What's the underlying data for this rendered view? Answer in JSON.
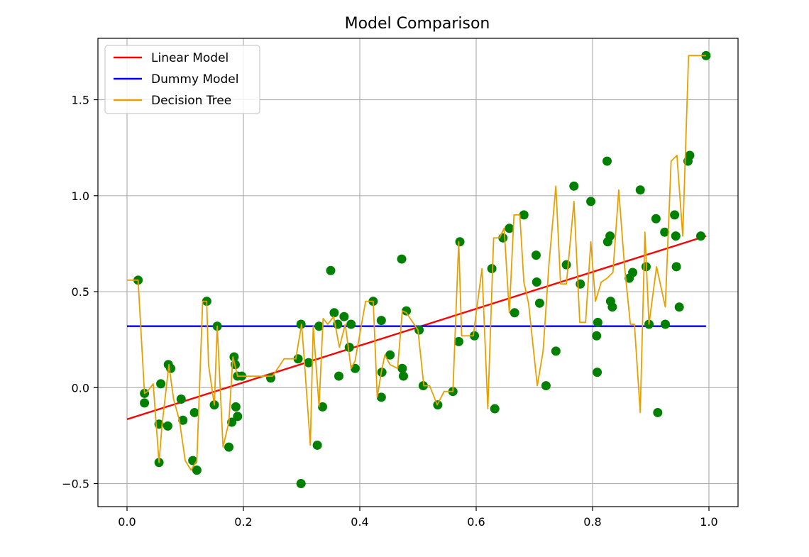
{
  "chart_data": {
    "type": "scatter",
    "title": "Model Comparison",
    "xlabel": "",
    "ylabel": "",
    "xlim": [
      -0.05,
      1.05
    ],
    "ylim": [
      -0.62,
      1.82
    ],
    "xticks": [
      0.0,
      0.2,
      0.4,
      0.6,
      0.8,
      1.0
    ],
    "xtick_labels": [
      "0.0",
      "0.2",
      "0.4",
      "0.6",
      "0.8",
      "1.0"
    ],
    "yticks": [
      -0.5,
      0.0,
      0.5,
      1.0,
      1.5
    ],
    "ytick_labels": [
      "−0.5",
      "0.0",
      "0.5",
      "1.0",
      "1.5"
    ],
    "grid": true,
    "legend_position": "top-left",
    "legend": [
      {
        "label": "Linear Model",
        "color": "#ff0000"
      },
      {
        "label": "Dummy Model",
        "color": "#0000ff"
      },
      {
        "label": "Decision Tree",
        "color": "#e6a000"
      }
    ],
    "points": {
      "color": "#008000",
      "x": [
        0.019,
        0.03,
        0.03,
        0.055,
        0.055,
        0.058,
        0.07,
        0.071,
        0.075,
        0.093,
        0.096,
        0.113,
        0.116,
        0.12,
        0.137,
        0.15,
        0.155,
        0.175,
        0.18,
        0.184,
        0.186,
        0.187,
        0.19,
        0.19,
        0.197,
        0.247,
        0.294,
        0.299,
        0.299,
        0.312,
        0.327,
        0.33,
        0.336,
        0.35,
        0.356,
        0.362,
        0.364,
        0.373,
        0.382,
        0.385,
        0.392,
        0.423,
        0.437,
        0.437,
        0.438,
        0.452,
        0.472,
        0.473,
        0.475,
        0.48,
        0.502,
        0.509,
        0.534,
        0.56,
        0.57,
        0.572,
        0.597,
        0.627,
        0.632,
        0.646,
        0.657,
        0.666,
        0.682,
        0.703,
        0.704,
        0.709,
        0.72,
        0.737,
        0.755,
        0.768,
        0.779,
        0.797,
        0.807,
        0.808,
        0.809,
        0.825,
        0.826,
        0.83,
        0.831,
        0.834,
        0.863,
        0.869,
        0.882,
        0.892,
        0.897,
        0.909,
        0.912,
        0.924,
        0.925,
        0.941,
        0.943,
        0.944,
        0.949,
        0.964,
        0.967,
        0.986,
        0.995
      ],
      "y": [
        0.56,
        -0.03,
        -0.08,
        -0.19,
        -0.39,
        0.02,
        -0.2,
        0.12,
        0.1,
        -0.06,
        -0.17,
        -0.38,
        -0.13,
        -0.43,
        0.45,
        -0.09,
        0.32,
        -0.31,
        -0.18,
        0.16,
        0.12,
        -0.1,
        -0.15,
        0.06,
        0.06,
        0.05,
        0.15,
        0.33,
        -0.5,
        0.13,
        -0.3,
        0.32,
        -0.1,
        0.61,
        0.39,
        0.33,
        0.06,
        0.37,
        0.21,
        0.33,
        0.1,
        0.45,
        0.35,
        -0.05,
        0.08,
        0.17,
        0.67,
        0.1,
        0.06,
        0.4,
        0.3,
        0.01,
        -0.09,
        -0.02,
        0.24,
        0.76,
        0.27,
        0.62,
        -0.11,
        0.78,
        0.83,
        0.39,
        0.9,
        0.69,
        0.55,
        0.44,
        0.01,
        0.19,
        0.64,
        1.05,
        0.54,
        0.97,
        0.27,
        0.08,
        0.34,
        1.18,
        0.76,
        0.79,
        0.45,
        0.42,
        0.57,
        0.6,
        1.03,
        0.63,
        0.33,
        0.88,
        -0.13,
        0.81,
        0.33,
        0.9,
        0.79,
        0.63,
        0.42,
        1.18,
        1.21,
        0.79,
        1.73
      ]
    },
    "series": [
      {
        "name": "Linear Model",
        "color": "#ff0000",
        "x": [
          0.0,
          0.995
        ],
        "y": [
          -0.165,
          0.79
        ]
      },
      {
        "name": "Dummy Model",
        "color": "#0000ff",
        "x": [
          0.0,
          0.995
        ],
        "y": [
          0.32,
          0.32
        ]
      },
      {
        "name": "Decision Tree",
        "color": "#e6a000",
        "x": [
          0.0,
          0.019,
          0.03,
          0.035,
          0.045,
          0.055,
          0.06,
          0.072,
          0.08,
          0.09,
          0.1,
          0.11,
          0.12,
          0.13,
          0.137,
          0.14,
          0.15,
          0.155,
          0.165,
          0.175,
          0.182,
          0.19,
          0.197,
          0.21,
          0.25,
          0.27,
          0.29,
          0.3,
          0.305,
          0.315,
          0.32,
          0.33,
          0.337,
          0.345,
          0.355,
          0.365,
          0.375,
          0.385,
          0.392,
          0.41,
          0.423,
          0.43,
          0.437,
          0.443,
          0.452,
          0.465,
          0.473,
          0.48,
          0.5,
          0.51,
          0.52,
          0.533,
          0.545,
          0.56,
          0.57,
          0.575,
          0.585,
          0.595,
          0.61,
          0.62,
          0.63,
          0.64,
          0.648,
          0.657,
          0.665,
          0.675,
          0.682,
          0.69,
          0.705,
          0.715,
          0.725,
          0.737,
          0.745,
          0.755,
          0.768,
          0.778,
          0.788,
          0.797,
          0.805,
          0.815,
          0.825,
          0.835,
          0.845,
          0.855,
          0.865,
          0.872,
          0.882,
          0.89,
          0.897,
          0.91,
          0.925,
          0.935,
          0.945,
          0.955,
          0.965,
          0.975,
          0.987,
          0.995
        ],
        "y": [
          0.56,
          0.56,
          -0.03,
          -0.02,
          0.02,
          -0.39,
          -0.2,
          0.12,
          -0.06,
          -0.17,
          -0.38,
          -0.43,
          -0.38,
          0.45,
          0.45,
          0.12,
          -0.09,
          0.32,
          -0.31,
          -0.18,
          0.16,
          0.06,
          0.06,
          0.06,
          0.06,
          0.15,
          0.15,
          0.33,
          0.13,
          -0.3,
          0.32,
          -0.1,
          0.36,
          0.33,
          0.37,
          0.21,
          0.33,
          0.1,
          0.14,
          0.45,
          0.45,
          -0.05,
          0.08,
          0.17,
          0.12,
          0.1,
          0.4,
          0.39,
          0.3,
          0.01,
          0.01,
          -0.09,
          -0.02,
          -0.02,
          0.76,
          0.27,
          0.27,
          0.27,
          0.62,
          -0.11,
          0.78,
          0.78,
          0.83,
          0.39,
          0.9,
          0.9,
          0.55,
          0.44,
          0.01,
          0.19,
          0.64,
          1.05,
          0.54,
          0.54,
          0.97,
          0.34,
          0.34,
          0.76,
          0.45,
          0.55,
          0.57,
          0.6,
          1.03,
          0.63,
          0.33,
          0.33,
          -0.13,
          0.81,
          0.33,
          0.63,
          0.42,
          1.18,
          1.21,
          0.79,
          1.73,
          1.73,
          1.73,
          1.73
        ]
      }
    ]
  }
}
